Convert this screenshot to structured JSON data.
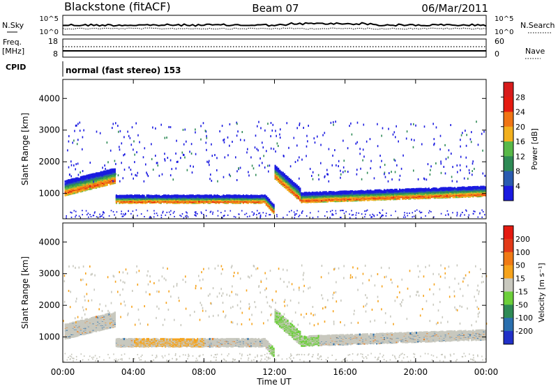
{
  "header": {
    "station": "Blackstone (fitACF)",
    "beam": "Beam 07",
    "date": "06/Mar/2011"
  },
  "top_panels": {
    "nsky_label": "N.Sky",
    "nsky_ticks": [
      "10^5",
      "10^0"
    ],
    "nsearch_label": "N.Search",
    "nsearch_ticks": [
      "10^5",
      "10^0"
    ],
    "freq_label": "Freq.",
    "freq_unit": "[MHz]",
    "freq_ticks": [
      "18",
      "8"
    ],
    "nave_label": "Nave",
    "nave_ticks": [
      "60",
      "0"
    ],
    "cpid_label": "CPID",
    "cpid_text": "normal (fast stereo) 153"
  },
  "chart_data": [
    {
      "type": "heatmap",
      "name": "power",
      "ylabel": "Slant Range [km]",
      "ylim": [
        200,
        4600
      ],
      "yticks": [
        1000,
        2000,
        3000,
        4000
      ],
      "colorbar_label": "Power [dB]",
      "colorbar_ticks": [
        "4",
        "8",
        "12",
        "16",
        "20",
        "24",
        "28"
      ],
      "colorbar_range": [
        0,
        32
      ],
      "colors": [
        "#1a1ae0",
        "#2a5bb0",
        "#2e8a55",
        "#58b848",
        "#f2b01e",
        "#f07515",
        "#e51a10",
        "#d81b1b"
      ]
    },
    {
      "type": "heatmap",
      "name": "velocity",
      "ylabel": "Slant Range [km]",
      "ylim": [
        200,
        4600
      ],
      "yticks": [
        1000,
        2000,
        3000,
        4000
      ],
      "colorbar_label": "Velocity [m s⁻¹]",
      "colorbar_ticks": [
        "200",
        "100",
        "50",
        "15",
        "-15",
        "-50",
        "-100",
        "-200"
      ],
      "colors": [
        "#2030c8",
        "#2a6fae",
        "#2e8a55",
        "#6ccf3a",
        "#c8c8be",
        "#f6a31c",
        "#f07a15",
        "#e33a18",
        "#e51a10"
      ]
    }
  ],
  "x_axis": {
    "label": "Time UT",
    "ticks": [
      "00:00",
      "04:00",
      "08:00",
      "12:00",
      "16:00",
      "20:00",
      "00:00"
    ]
  }
}
